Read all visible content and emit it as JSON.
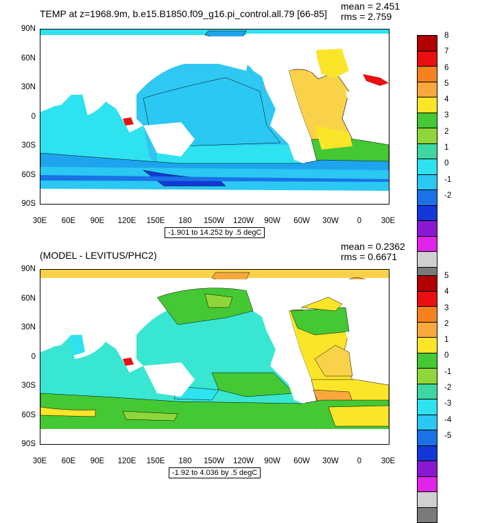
{
  "panels": [
    {
      "title": "TEMP at z=1968.9m, b.e15.B1850.f09_g16.pi_control.all.79 [66-85]",
      "mean": "mean = 2.451",
      "rms": "rms = 2.759",
      "range": "-1.901 to 14.252 by .5 degC",
      "lat_ticks": [
        "90N",
        "60N",
        "30N",
        "0",
        "30S",
        "60S",
        "90S"
      ],
      "lon_ticks": [
        "30E",
        "60E",
        "90E",
        "120E",
        "150E",
        "180",
        "150W",
        "120W",
        "90W",
        "60W",
        "30W",
        "0",
        "30E"
      ],
      "colorbar_labels": [
        "8",
        "7",
        "6",
        "5",
        "4",
        "3",
        "2",
        "1",
        "0",
        "-1",
        "-2"
      ],
      "colorbar_colors": [
        "#b00000",
        "#e81010",
        "#f04a10",
        "#f5821e",
        "#f8a83c",
        "#fad24a",
        "#fbe528",
        "#8fd63a",
        "#44c833",
        "#3ed6a2",
        "#38e6d2",
        "#2ee2f0",
        "#2ac8f2",
        "#1ea4ee",
        "#1a72e6",
        "#1238d8",
        "#3a1fb8",
        "#8a18d0",
        "#c818d6",
        "#e024e8",
        "#c8c8c8",
        "#7a7a7a"
      ],
      "field_colors": {
        "deep": "#1a72e6",
        "cold": "#1ea4ee",
        "cool": "#2ac8f2",
        "main": "#2ee2f0",
        "mid": "#38e6d2",
        "green": "#44c833",
        "lgreen": "#8fd63a",
        "yellow": "#fbe528",
        "warm": "#fad24a",
        "orange": "#f8a83c",
        "red": "#e81010"
      }
    },
    {
      "title": "(MODEL - LEVITUS/PHC2)",
      "mean": "mean = 0.2362",
      "rms": "rms = 0.6671",
      "range": "-1.92 to 4.036 by .5 degC",
      "lat_ticks": [
        "90N",
        "60N",
        "30N",
        "0",
        "30S",
        "60S",
        "90S"
      ],
      "lon_ticks": [
        "30E",
        "60E",
        "90E",
        "120E",
        "150E",
        "180",
        "150W",
        "120W",
        "90W",
        "60W",
        "30W",
        "0",
        "30E"
      ],
      "colorbar_labels": [
        "5",
        "4",
        "3",
        "2",
        "1",
        "0",
        "-1",
        "-2",
        "-3",
        "-4",
        "-5"
      ],
      "colorbar_colors": [
        "#b00000",
        "#e81010",
        "#f04a10",
        "#f5821e",
        "#f8a83c",
        "#fad24a",
        "#fbe528",
        "#8fd63a",
        "#44c833",
        "#3ed6a2",
        "#38e6d2",
        "#2ee2f0",
        "#2ac8f2",
        "#1ea4ee",
        "#1a72e6",
        "#1238d8",
        "#3a1fb8",
        "#8a18d0",
        "#c818d6",
        "#e024e8",
        "#c8c8c8",
        "#7a7a7a"
      ],
      "field_colors": {
        "main": "#38e6d2",
        "green": "#44c833",
        "lgreen": "#8fd63a",
        "yellow": "#fbe528",
        "warm": "#fad24a",
        "orange": "#f8a83c",
        "red": "#e81010",
        "teal": "#3ed6a2",
        "cyan": "#2ee2f0"
      }
    }
  ]
}
